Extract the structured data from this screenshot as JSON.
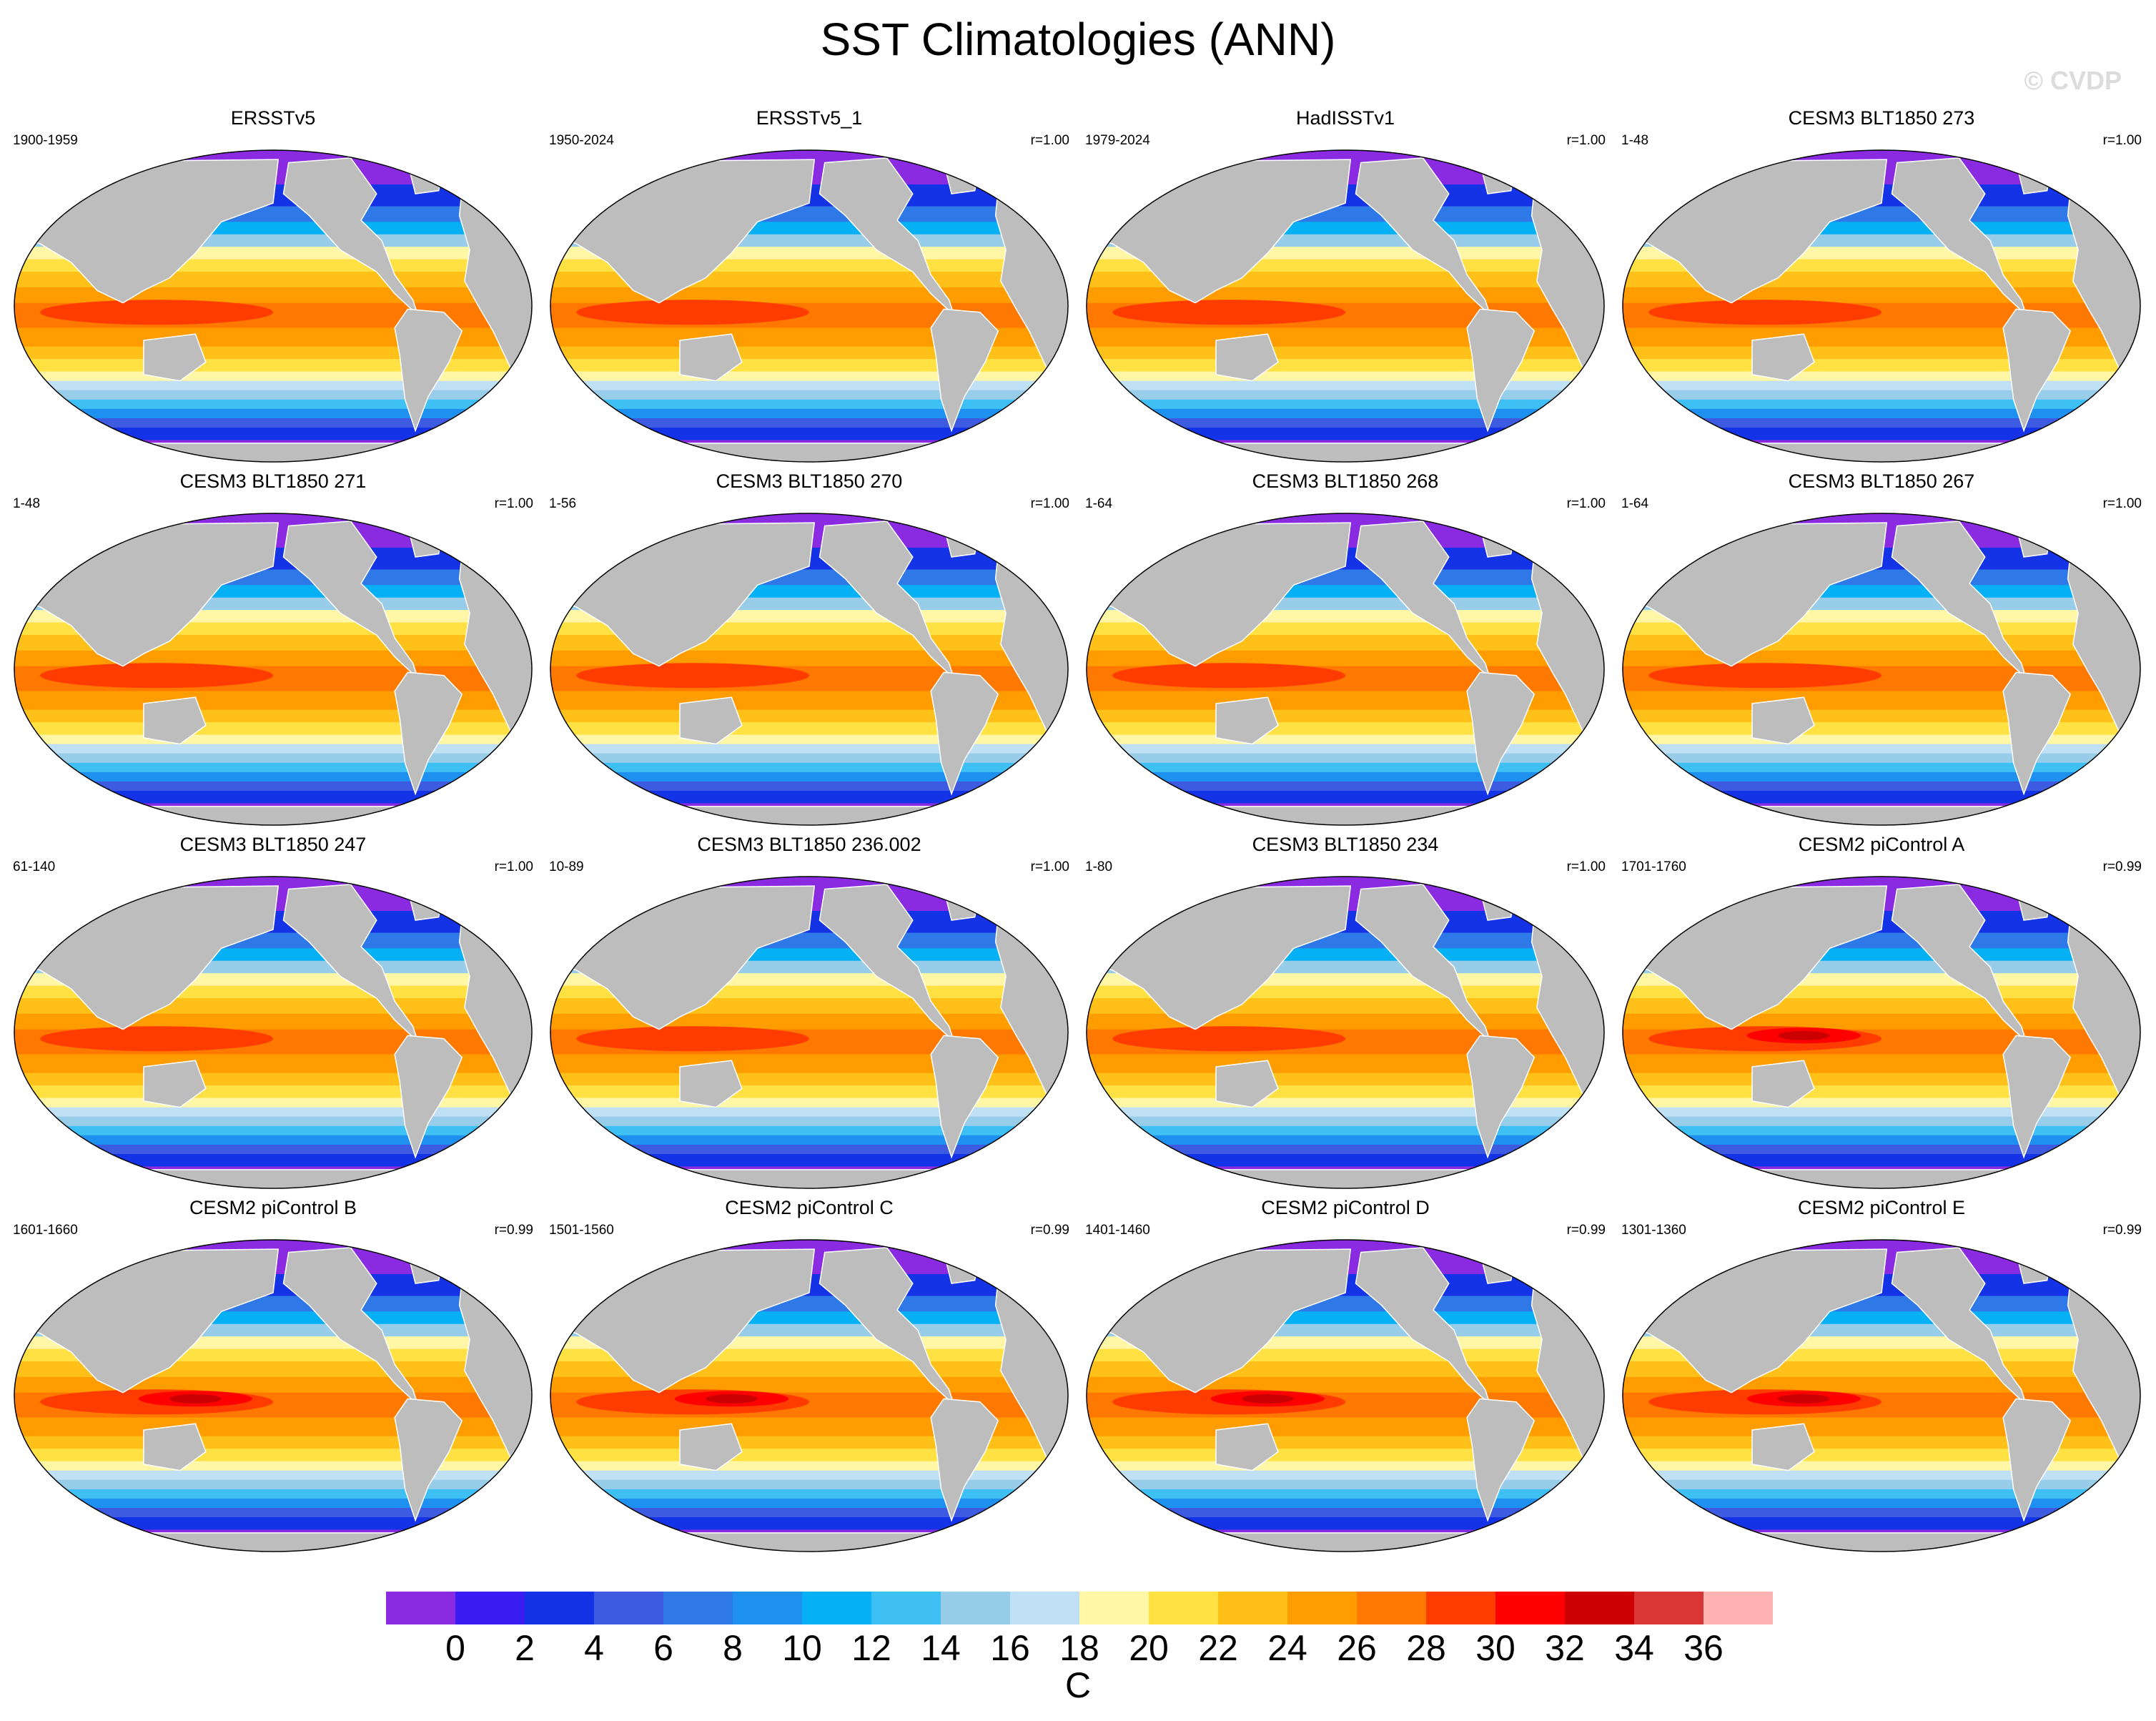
{
  "title": "SST Climatologies (ANN)",
  "watermark": "© CVDP",
  "panels": [
    {
      "title": "ERSSTv5",
      "period": "1900-1959",
      "corr": "",
      "hot": 0.25
    },
    {
      "title": "ERSSTv5_1",
      "period": "1950-2024",
      "corr": "r=1.00",
      "hot": 0.35
    },
    {
      "title": "HadISSTv1",
      "period": "1979-2024",
      "corr": "r=1.00",
      "hot": 0.35
    },
    {
      "title": "CESM3 BLT1850 273",
      "period": "1-48",
      "corr": "r=1.00",
      "hot": 0.1
    },
    {
      "title": "CESM3 BLT1850 271",
      "period": "1-48",
      "corr": "r=1.00",
      "hot": 0.1
    },
    {
      "title": "CESM3 BLT1850 270",
      "period": "1-56",
      "corr": "r=1.00",
      "hot": 0.1
    },
    {
      "title": "CESM3 BLT1850 268",
      "period": "1-64",
      "corr": "r=1.00",
      "hot": 0.1
    },
    {
      "title": "CESM3 BLT1850 267",
      "period": "1-64",
      "corr": "r=1.00",
      "hot": 0.1
    },
    {
      "title": "CESM3 BLT1850 247",
      "period": "61-140",
      "corr": "r=1.00",
      "hot": 0.1
    },
    {
      "title": "CESM3 BLT1850 236.002",
      "period": "10-89",
      "corr": "r=1.00",
      "hot": 0.1
    },
    {
      "title": "CESM3 BLT1850 234",
      "period": "1-80",
      "corr": "r=1.00",
      "hot": 0.1
    },
    {
      "title": "CESM2 piControl A",
      "period": "1701-1760",
      "corr": "r=0.99",
      "hot": 0.7
    },
    {
      "title": "CESM2 piControl B",
      "period": "1601-1660",
      "corr": "r=0.99",
      "hot": 0.7
    },
    {
      "title": "CESM2 piControl C",
      "period": "1501-1560",
      "corr": "r=0.99",
      "hot": 0.7
    },
    {
      "title": "CESM2 piControl D",
      "period": "1401-1460",
      "corr": "r=0.99",
      "hot": 0.7
    },
    {
      "title": "CESM2 piControl E",
      "period": "1301-1360",
      "corr": "r=0.99",
      "hot": 0.7
    }
  ],
  "colorbar": {
    "units": "C",
    "levels": [
      "0",
      "2",
      "4",
      "6",
      "8",
      "10",
      "12",
      "14",
      "16",
      "18",
      "20",
      "22",
      "24",
      "26",
      "28",
      "30",
      "32",
      "34",
      "36"
    ],
    "colors": [
      "#8a2be2",
      "#3b1cf2",
      "#1432e6",
      "#3c5be0",
      "#2f78e8",
      "#1e90f0",
      "#06b0f5",
      "#3fc0f4",
      "#98cdea",
      "#bfe0f5",
      "#fff7a5",
      "#ffe143",
      "#ffc119",
      "#ff9d00",
      "#ff7800",
      "#ff3c00",
      "#ff0000",
      "#cc0000",
      "#db3636",
      "#ffb2b2"
    ]
  },
  "chart_data": {
    "type": "heatmap",
    "title": "SST Climatologies (ANN)",
    "units": "C",
    "colorbar_range": [
      0,
      36
    ],
    "colorbar_step": 2,
    "legend_placement": "bottom",
    "panels": [
      {
        "name": "ERSSTv5",
        "period": "1900-1959",
        "r": null
      },
      {
        "name": "ERSSTv5_1",
        "period": "1950-2024",
        "r": 1.0
      },
      {
        "name": "HadISSTv1",
        "period": "1979-2024",
        "r": 1.0
      },
      {
        "name": "CESM3 BLT1850 273",
        "period": "1-48",
        "r": 1.0
      },
      {
        "name": "CESM3 BLT1850 271",
        "period": "1-48",
        "r": 1.0
      },
      {
        "name": "CESM3 BLT1850 270",
        "period": "1-56",
        "r": 1.0
      },
      {
        "name": "CESM3 BLT1850 268",
        "period": "1-64",
        "r": 1.0
      },
      {
        "name": "CESM3 BLT1850 267",
        "period": "1-64",
        "r": 1.0
      },
      {
        "name": "CESM3 BLT1850 247",
        "period": "61-140",
        "r": 1.0
      },
      {
        "name": "CESM3 BLT1850 236.002",
        "period": "10-89",
        "r": 1.0
      },
      {
        "name": "CESM3 BLT1850 234",
        "period": "1-80",
        "r": 1.0
      },
      {
        "name": "CESM2 piControl A",
        "period": "1701-1760",
        "r": 0.99
      },
      {
        "name": "CESM2 piControl B",
        "period": "1601-1660",
        "r": 0.99
      },
      {
        "name": "CESM2 piControl C",
        "period": "1501-1560",
        "r": 0.99
      },
      {
        "name": "CESM2 piControl D",
        "period": "1401-1460",
        "r": 0.99
      },
      {
        "name": "CESM2 piControl E",
        "period": "1301-1360",
        "r": 0.99
      }
    ]
  }
}
